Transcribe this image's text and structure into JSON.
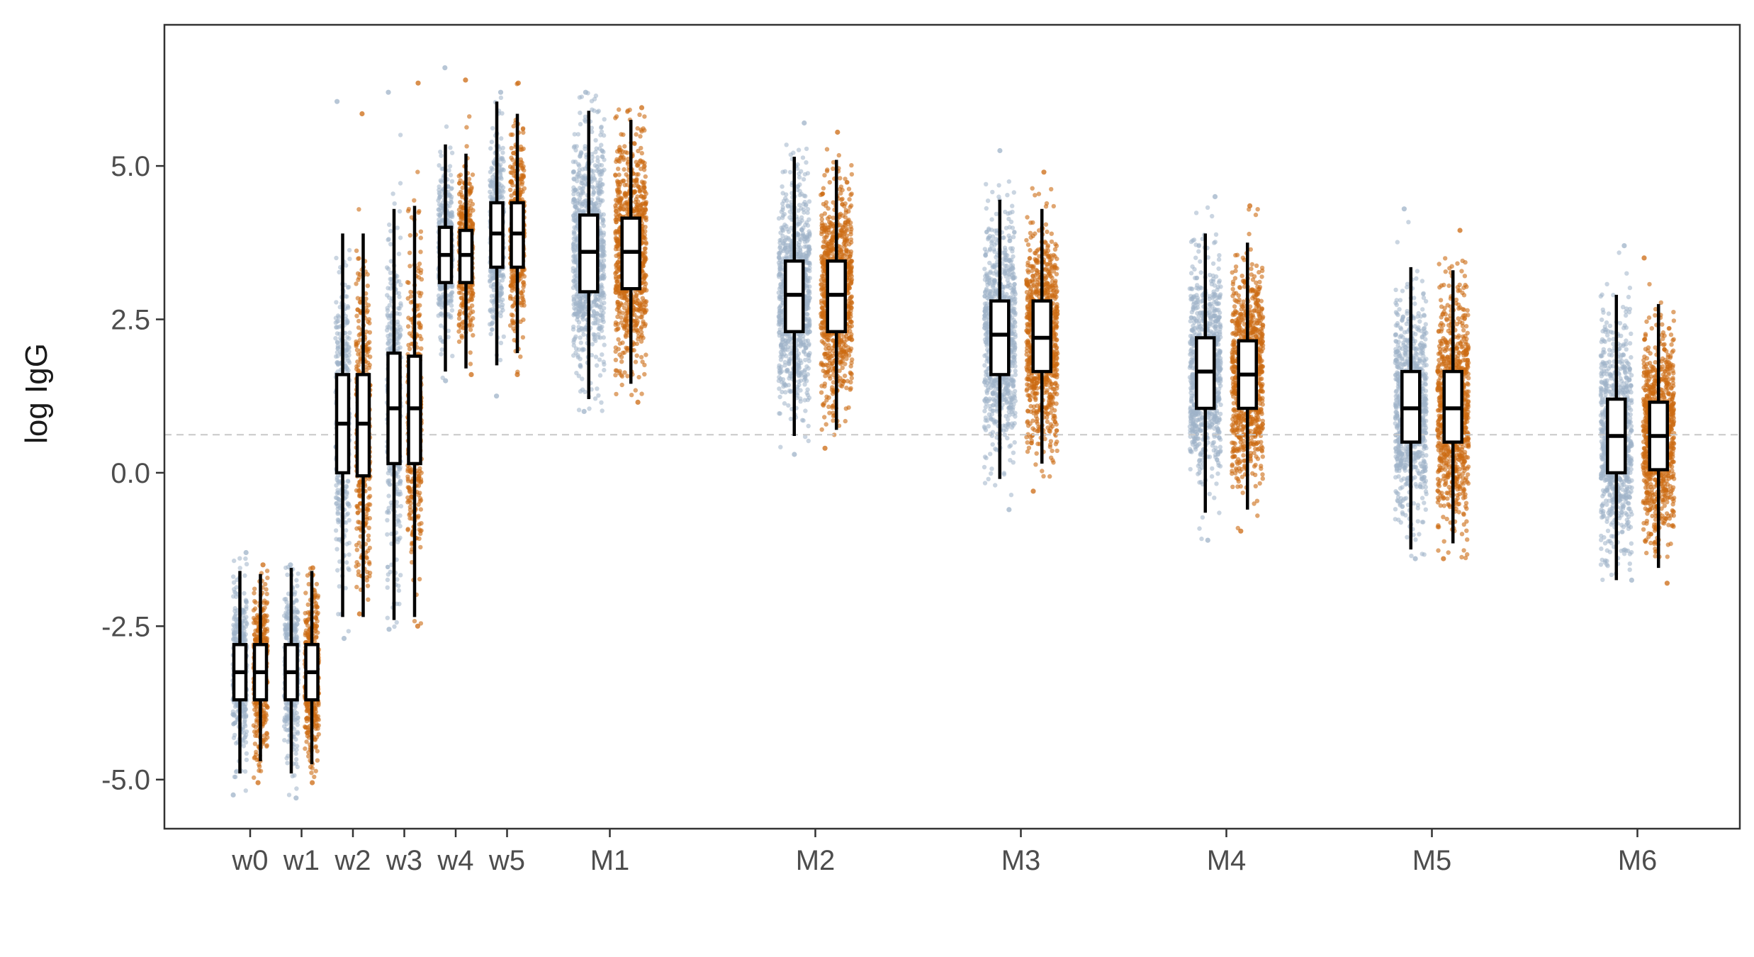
{
  "chart_data": {
    "type": "box",
    "title": "",
    "xlabel": "",
    "ylabel": "log IgG",
    "ylim": [
      -5.8,
      7.3
    ],
    "y_ticks": [
      {
        "value": 5.0,
        "label": "5.0"
      },
      {
        "value": 2.5,
        "label": "2.5"
      },
      {
        "value": 0.0,
        "label": "0.0"
      },
      {
        "value": -2.5,
        "label": "-2.5"
      },
      {
        "value": -5.0,
        "label": "-5.0"
      }
    ],
    "reference_line": {
      "value": 0.62,
      "style": "dashed",
      "color": "#c8c8c8"
    },
    "grid": false,
    "legend": "none",
    "x_unit": "week",
    "categories": [
      {
        "label": "w0",
        "x": 0
      },
      {
        "label": "w1",
        "x": 1
      },
      {
        "label": "w2",
        "x": 2
      },
      {
        "label": "w3",
        "x": 3
      },
      {
        "label": "w4",
        "x": 4
      },
      {
        "label": "w5",
        "x": 5
      },
      {
        "label": "M1",
        "x": 7
      },
      {
        "label": "M2",
        "x": 11
      },
      {
        "label": "M3",
        "x": 15
      },
      {
        "label": "M4",
        "x": 19
      },
      {
        "label": "M5",
        "x": 23
      },
      {
        "label": "M6",
        "x": 27
      }
    ],
    "series": [
      {
        "color": "#9fb3c8",
        "boxes": [
          {
            "category": "w0",
            "whislo": -4.9,
            "q1": -3.7,
            "med": -3.25,
            "q3": -2.8,
            "whishi": -1.6,
            "ymin": -5.25,
            "ymax": -1.3
          },
          {
            "category": "w1",
            "whislo": -4.9,
            "q1": -3.7,
            "med": -3.25,
            "q3": -2.8,
            "whishi": -1.55,
            "ymin": -5.3,
            "ymax": -1.5
          },
          {
            "category": "w2",
            "whislo": -2.35,
            "q1": 0.0,
            "med": 0.8,
            "q3": 1.6,
            "whishi": 3.9,
            "ymin": -2.7,
            "ymax": 6.05
          },
          {
            "category": "w3",
            "whislo": -2.4,
            "q1": 0.15,
            "med": 1.05,
            "q3": 1.95,
            "whishi": 4.3,
            "ymin": -2.55,
            "ymax": 6.2
          },
          {
            "category": "w4",
            "whislo": 1.65,
            "q1": 3.1,
            "med": 3.55,
            "q3": 4.0,
            "whishi": 5.35,
            "ymin": 1.5,
            "ymax": 6.6
          },
          {
            "category": "w5",
            "whislo": 1.75,
            "q1": 3.35,
            "med": 3.9,
            "q3": 4.4,
            "whishi": 6.05,
            "ymin": 1.25,
            "ymax": 6.2
          },
          {
            "category": "M1",
            "whislo": 1.2,
            "q1": 2.95,
            "med": 3.6,
            "q3": 4.2,
            "whishi": 5.9,
            "ymin": 1.0,
            "ymax": 6.2
          },
          {
            "category": "M2",
            "whislo": 0.6,
            "q1": 2.3,
            "med": 2.9,
            "q3": 3.45,
            "whishi": 5.15,
            "ymin": 0.3,
            "ymax": 5.7
          },
          {
            "category": "M3",
            "whislo": -0.1,
            "q1": 1.6,
            "med": 2.25,
            "q3": 2.8,
            "whishi": 4.45,
            "ymin": -0.6,
            "ymax": 5.25
          },
          {
            "category": "M4",
            "whislo": -0.65,
            "q1": 1.05,
            "med": 1.65,
            "q3": 2.2,
            "whishi": 3.9,
            "ymin": -1.1,
            "ymax": 4.5
          },
          {
            "category": "M5",
            "whislo": -1.25,
            "q1": 0.5,
            "med": 1.05,
            "q3": 1.65,
            "whishi": 3.35,
            "ymin": -1.4,
            "ymax": 4.3
          },
          {
            "category": "M6",
            "whislo": -1.75,
            "q1": 0.0,
            "med": 0.6,
            "q3": 1.2,
            "whishi": 2.9,
            "ymin": -1.75,
            "ymax": 3.7
          }
        ]
      },
      {
        "color": "#cc6a12",
        "boxes": [
          {
            "category": "w0",
            "whislo": -4.7,
            "q1": -3.7,
            "med": -3.25,
            "q3": -2.8,
            "whishi": -1.65,
            "ymin": -5.05,
            "ymax": -1.5
          },
          {
            "category": "w1",
            "whislo": -4.75,
            "q1": -3.7,
            "med": -3.25,
            "q3": -2.8,
            "whishi": -1.6,
            "ymin": -5.05,
            "ymax": -1.55
          },
          {
            "category": "w2",
            "whislo": -2.35,
            "q1": -0.05,
            "med": 0.8,
            "q3": 1.6,
            "whishi": 3.9,
            "ymin": -2.3,
            "ymax": 5.85
          },
          {
            "category": "w3",
            "whislo": -2.35,
            "q1": 0.15,
            "med": 1.05,
            "q3": 1.9,
            "whishi": 4.35,
            "ymin": -2.5,
            "ymax": 6.35
          },
          {
            "category": "w4",
            "whislo": 1.7,
            "q1": 3.1,
            "med": 3.55,
            "q3": 3.95,
            "whishi": 5.2,
            "ymin": 1.6,
            "ymax": 6.4
          },
          {
            "category": "w5",
            "whislo": 1.95,
            "q1": 3.35,
            "med": 3.9,
            "q3": 4.4,
            "whishi": 5.85,
            "ymin": 1.6,
            "ymax": 6.35
          },
          {
            "category": "M1",
            "whislo": 1.45,
            "q1": 3.0,
            "med": 3.6,
            "q3": 4.15,
            "whishi": 5.75,
            "ymin": 1.15,
            "ymax": 5.95
          },
          {
            "category": "M2",
            "whislo": 0.7,
            "q1": 2.3,
            "med": 2.9,
            "q3": 3.45,
            "whishi": 5.1,
            "ymin": 0.4,
            "ymax": 5.55
          },
          {
            "category": "M3",
            "whislo": 0.15,
            "q1": 1.65,
            "med": 2.2,
            "q3": 2.8,
            "whishi": 4.3,
            "ymin": -0.3,
            "ymax": 4.9
          },
          {
            "category": "M4",
            "whislo": -0.6,
            "q1": 1.05,
            "med": 1.6,
            "q3": 2.15,
            "whishi": 3.75,
            "ymin": -0.95,
            "ymax": 4.35
          },
          {
            "category": "M5",
            "whislo": -1.15,
            "q1": 0.5,
            "med": 1.05,
            "q3": 1.65,
            "whishi": 3.3,
            "ymin": -1.4,
            "ymax": 3.95
          },
          {
            "category": "M6",
            "whislo": -1.55,
            "q1": 0.05,
            "med": 0.6,
            "q3": 1.15,
            "whishi": 2.75,
            "ymin": -1.8,
            "ymax": 3.5
          }
        ]
      }
    ]
  }
}
